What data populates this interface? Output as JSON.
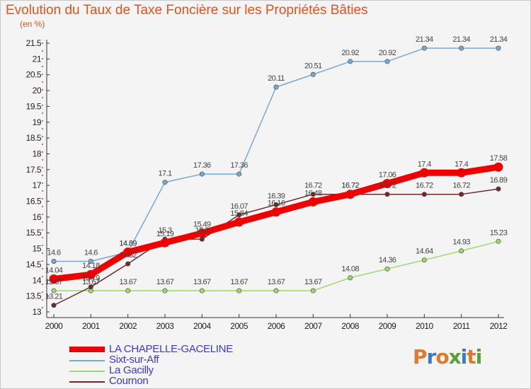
{
  "header": {
    "title": "Evolution du Taux de Taxe Foncière sur les Propriétés Bâties",
    "unit": "(en %)"
  },
  "brand": {
    "logo": "Proxiti"
  },
  "chart_data": {
    "type": "line",
    "title": "Evolution du Taux de Taxe Foncière sur les Propriétés Bâties",
    "ylabel": "(en %)",
    "xlabel": "",
    "x": [
      "2000",
      "2001",
      "2002",
      "2003",
      "2004",
      "2005",
      "2006",
      "2007",
      "2008",
      "2009",
      "2010",
      "2011",
      "2012"
    ],
    "ylim": [
      13,
      21.5
    ],
    "yticks": [
      "13",
      "13.5",
      "14",
      "14.5",
      "15",
      "15.5",
      "16",
      "16.5",
      "17",
      "17.5",
      "18",
      "18.5",
      "19",
      "19.5",
      "20",
      "20.5",
      "21",
      "21.5"
    ],
    "grid": false,
    "legend_position": "bottom-left",
    "series": [
      {
        "name": "LA CHAPELLE-GACELINE",
        "color": "#ee0000",
        "values": [
          14.04,
          14.18,
          14.89,
          15.19,
          15.49,
          15.84,
          16.16,
          16.48,
          16.72,
          17.06,
          17.4,
          17.4,
          17.58
        ],
        "labels": [
          "14.04",
          "14.18",
          "14.89",
          "15.19",
          "15.49",
          "15.84",
          "16.16",
          "16.48",
          "16.72",
          "17.06",
          "17.4",
          "17.4",
          "17.58"
        ]
      },
      {
        "name": "Sixt-sur-Aff",
        "color": "#78a8d2",
        "values": [
          14.6,
          14.6,
          14.89,
          17.1,
          17.36,
          17.36,
          20.11,
          20.51,
          20.92,
          20.92,
          21.34,
          21.34,
          21.34
        ],
        "labels": [
          "14.6",
          "14.6",
          "14.89",
          "17.1",
          "17.36",
          "17.36",
          "20.11",
          "20.51",
          "20.92",
          "20.92",
          "21.34",
          "21.34",
          "21.34"
        ]
      },
      {
        "name": "La Gacilly",
        "color": "#9cd86a",
        "values": [
          13.67,
          13.67,
          13.67,
          13.67,
          13.67,
          13.67,
          13.67,
          13.67,
          14.08,
          14.36,
          14.64,
          14.93,
          15.23
        ],
        "labels": [
          "13.67",
          "13.67",
          "13.67",
          "13.67",
          "13.67",
          "13.67",
          "13.67",
          "13.67",
          "14.08",
          "14.36",
          "14.64",
          "14.93",
          "15.23"
        ]
      },
      {
        "name": "Cournon",
        "color": "#6e2a2a",
        "values": [
          13.21,
          13.79,
          14.52,
          15.3,
          15.3,
          16.07,
          16.39,
          16.72,
          16.72,
          16.72,
          16.72,
          16.72,
          16.89
        ],
        "labels": [
          "13.21",
          "13.79",
          "14.52",
          "15.3",
          "15.3",
          "16.07",
          "16.39",
          "16.72",
          "16.72",
          "16.72",
          "16.72",
          "16.72",
          "16.89"
        ]
      }
    ]
  }
}
